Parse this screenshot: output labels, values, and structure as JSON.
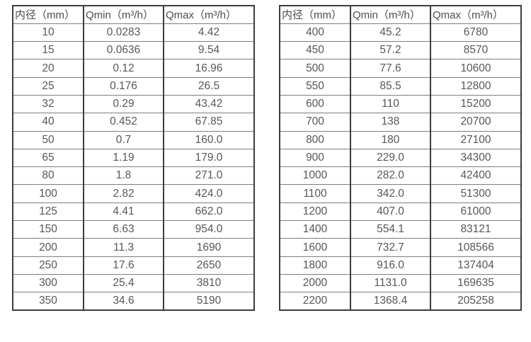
{
  "accent_colors": {
    "border_dark": "#3d3d3d",
    "border_light": "#7e7e7e",
    "text": "#575757",
    "background": "#ffffff"
  },
  "tables": [
    {
      "name": "flow-table-small-diameters",
      "headers": [
        "内径（mm）",
        "Qmin（m³/h）",
        "Qmax（m³/h）"
      ],
      "rows": [
        [
          "10",
          "0.0283",
          "4.42"
        ],
        [
          "15",
          "0.0636",
          "9.54"
        ],
        [
          "20",
          "0.12",
          "16.96"
        ],
        [
          "25",
          "0.176",
          "26.5"
        ],
        [
          "32",
          "0.29",
          "43.42"
        ],
        [
          "40",
          "0.452",
          "67.85"
        ],
        [
          "50",
          "0.7",
          "160.0"
        ],
        [
          "65",
          "1.19",
          "179.0"
        ],
        [
          "80",
          "1.8",
          "271.0"
        ],
        [
          "100",
          "2.82",
          "424.0"
        ],
        [
          "125",
          "4.41",
          "662.0"
        ],
        [
          "150",
          "6.63",
          "954.0"
        ],
        [
          "200",
          "11.3",
          "1690"
        ],
        [
          "250",
          "17.6",
          "2650"
        ],
        [
          "300",
          "25.4",
          "3810"
        ],
        [
          "350",
          "34.6",
          "5190"
        ]
      ]
    },
    {
      "name": "flow-table-large-diameters",
      "headers": [
        "内径（mm）",
        "Qmin（m³/h）",
        "Qmax（m³/h）"
      ],
      "rows": [
        [
          "400",
          "45.2",
          "6780"
        ],
        [
          "450",
          "57.2",
          "8570"
        ],
        [
          "500",
          "77.6",
          "10600"
        ],
        [
          "550",
          "85.5",
          "12800"
        ],
        [
          "600",
          "110",
          "15200"
        ],
        [
          "700",
          "138",
          "20700"
        ],
        [
          "800",
          "180",
          "27100"
        ],
        [
          "900",
          "229.0",
          "34300"
        ],
        [
          "1000",
          "282.0",
          "42400"
        ],
        [
          "1100",
          "342.0",
          "51300"
        ],
        [
          "1200",
          "407.0",
          "61000"
        ],
        [
          "1400",
          "554.1",
          "83121"
        ],
        [
          "1600",
          "732.7",
          "108566"
        ],
        [
          "1800",
          "916.0",
          "137404"
        ],
        [
          "2000",
          "1131.0",
          "169635"
        ],
        [
          "2200",
          "1368.4",
          "205258"
        ]
      ]
    }
  ]
}
